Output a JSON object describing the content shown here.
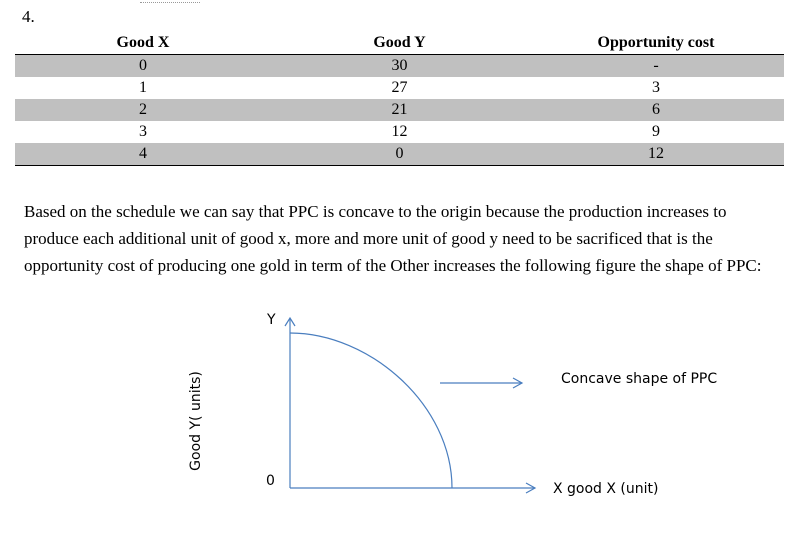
{
  "question_number": "4.",
  "table": {
    "headers": [
      "Good X",
      "Good Y",
      "Opportunity cost"
    ],
    "rows": [
      [
        "0",
        "30",
        "-"
      ],
      [
        "1",
        "27",
        "3"
      ],
      [
        "2",
        "21",
        "6"
      ],
      [
        "3",
        "12",
        "9"
      ],
      [
        "4",
        "0",
        "12"
      ]
    ]
  },
  "paragraph": "Based on the schedule we can say that PPC is concave to the origin because the production increases to produce each additional unit of good x, more and more unit of good y need to be sacrificed that is the opportunity cost of producing one gold in term of the Other increases the following figure the shape of PPC:",
  "figure": {
    "y_axis_letter": "Y",
    "y_axis_label": "Good Y( units)",
    "origin_label": "0",
    "x_axis_label": "X good X (unit)",
    "annotation": "Concave shape of PPC",
    "line_color": "#4a7ebf"
  }
}
